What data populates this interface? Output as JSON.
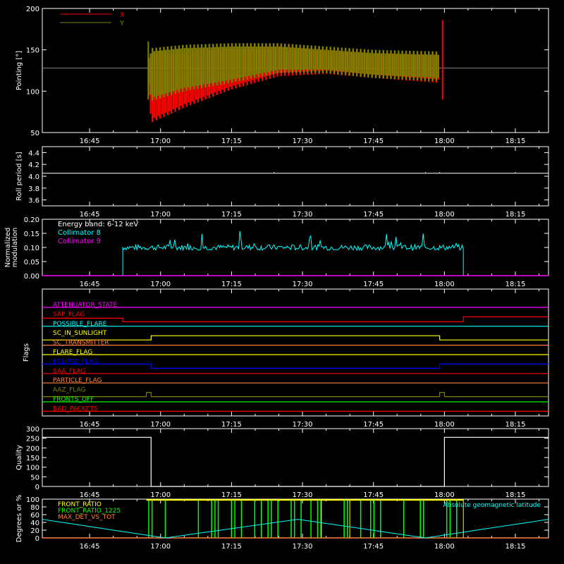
{
  "colors": {
    "background": "#000000",
    "axis": "#ffffff",
    "x": "#ff0000",
    "y": "#808000",
    "white": "#ffffff",
    "cyan": "#00ffff",
    "magenta": "#ff00ff",
    "green": "#00ff00",
    "yellow": "#ffff00",
    "orange": "#ff8040",
    "blue": "#0000ff"
  },
  "chart_data": [
    {
      "id": "pointing",
      "type": "line",
      "ylabel": "Pointing [°]",
      "ylim": [
        50,
        200
      ],
      "yticks": [
        50,
        100,
        150,
        200
      ],
      "xlim": [
        "16:35",
        "18:22"
      ],
      "xticks": [
        "16:45",
        "17:00",
        "17:15",
        "17:30",
        "17:45",
        "18:00",
        "18:15"
      ],
      "series": [
        {
          "name": "X",
          "color": "#ff0000",
          "x": [
            "16:35",
            "16:57",
            "16:58",
            "17:05",
            "17:15",
            "17:25",
            "17:35",
            "17:45",
            "17:59",
            "18:00",
            "18:22"
          ],
          "y_min": [
            128,
            128,
            62,
            80,
            102,
            118,
            121,
            116,
            110,
            128,
            128
          ],
          "y_max": [
            128,
            128,
            148,
            150,
            155,
            157,
            152,
            148,
            146,
            128,
            128
          ]
        },
        {
          "name": "Y",
          "color": "#808000",
          "x": [
            "16:35",
            "16:57",
            "16:58",
            "17:05",
            "17:15",
            "17:25",
            "17:35",
            "17:45",
            "17:59",
            "18:00",
            "18:22"
          ],
          "y_min": [
            128,
            128,
            88,
            100,
            110,
            122,
            122,
            116,
            112,
            128,
            128
          ],
          "y_max": [
            128,
            128,
            152,
            156,
            158,
            158,
            154,
            150,
            148,
            128,
            128
          ]
        }
      ]
    },
    {
      "id": "roll",
      "type": "line",
      "ylabel": "Roll period [s]",
      "ylim": [
        3.5,
        4.5
      ],
      "yticks": [
        3.6,
        3.8,
        4.0,
        4.2,
        4.4
      ],
      "series": [
        {
          "name": "",
          "color": "#ffffff",
          "x": [
            "16:35",
            "18:22"
          ],
          "y": [
            4.05,
            4.05
          ]
        }
      ]
    },
    {
      "id": "modulation",
      "type": "line",
      "ylabel": "Normalized modulation",
      "ylim": [
        0,
        0.2
      ],
      "yticks": [
        0.0,
        0.05,
        0.1,
        0.15,
        0.2
      ],
      "annotation": "Energy band: 6-12 keV",
      "series": [
        {
          "name": "Collimator 8",
          "color": "#00ffff",
          "x": [
            "16:52",
            "17:05",
            "17:20",
            "17:35",
            "17:50",
            "18:04"
          ],
          "y": [
            0.1,
            0.1,
            0.1,
            0.1,
            0.1,
            0.1
          ]
        },
        {
          "name": "Collimator 9",
          "color": "#ff00ff",
          "x": [
            "16:35",
            "18:22"
          ],
          "y": [
            0,
            0
          ]
        }
      ]
    },
    {
      "id": "flags",
      "type": "line",
      "ylabel": "Flags",
      "flags": [
        {
          "name": "ATTENUATOR_STATE",
          "color": "#ff00ff",
          "steps": []
        },
        {
          "name": "SAP_FLAG",
          "color": "#ff0000",
          "steps": [
            [
              "16:52",
              "18:04"
            ]
          ]
        },
        {
          "name": "POSSIBLE_FLARE",
          "color": "#00ffff",
          "steps": []
        },
        {
          "name": "SC_IN_SUNLIGHT",
          "color": "#ffff00",
          "steps": [
            [
              "16:58",
              "17:59"
            ]
          ]
        },
        {
          "name": "SC_TRANSMITTER",
          "color": "#ff8040",
          "steps": []
        },
        {
          "name": "FLARE_FLAG",
          "color": "#ffff00",
          "steps": []
        },
        {
          "name": "ECLIPSE_FLAG",
          "color": "#0000ff",
          "steps": [
            [
              "16:35",
              "16:58"
            ],
            [
              "17:59",
              "18:22"
            ]
          ]
        },
        {
          "name": "SAA_FLAG",
          "color": "#ff0000",
          "steps": []
        },
        {
          "name": "PARTICLE_FLAG",
          "color": "#ff8040",
          "steps": []
        },
        {
          "name": "AAZ_FLAG",
          "color": "#808000",
          "steps": [
            [
              "16:57",
              "16:58"
            ],
            [
              "17:59",
              "18:00"
            ]
          ]
        },
        {
          "name": "FRONTS_OFF",
          "color": "#00ff00",
          "steps": []
        },
        {
          "name": "BAD_PACKETS",
          "color": "#ff0000",
          "steps": []
        }
      ]
    },
    {
      "id": "quality",
      "type": "line",
      "ylabel": "Quality",
      "ylim": [
        0,
        300
      ],
      "yticks": [
        0,
        50,
        100,
        150,
        200,
        250,
        300
      ],
      "series": [
        {
          "name": "",
          "color": "#ffffff",
          "x": [
            "16:35",
            "16:58",
            "16:58",
            "18:00",
            "18:00",
            "18:22"
          ],
          "y": [
            255,
            255,
            0,
            0,
            255,
            255
          ]
        }
      ]
    },
    {
      "id": "ratios",
      "type": "line",
      "ylabel": "Degrees or %",
      "ylim": [
        0,
        100
      ],
      "yticks": [
        0,
        20,
        40,
        60,
        80,
        100
      ],
      "series": [
        {
          "name": "FRONT_RATIO",
          "color": "#ffff00"
        },
        {
          "name": "FRONT_RATIO_1225",
          "color": "#00ff00"
        },
        {
          "name": "MAX_DET_VS_TOT",
          "color": "#ff8040"
        },
        {
          "name": "Absolute geomagnetic latitude",
          "color": "#00ffff",
          "x": [
            "16:35",
            "16:50",
            "17:01",
            "17:29",
            "17:56",
            "18:22"
          ],
          "y": [
            48,
            20,
            0,
            48,
            0,
            48
          ]
        }
      ]
    }
  ]
}
